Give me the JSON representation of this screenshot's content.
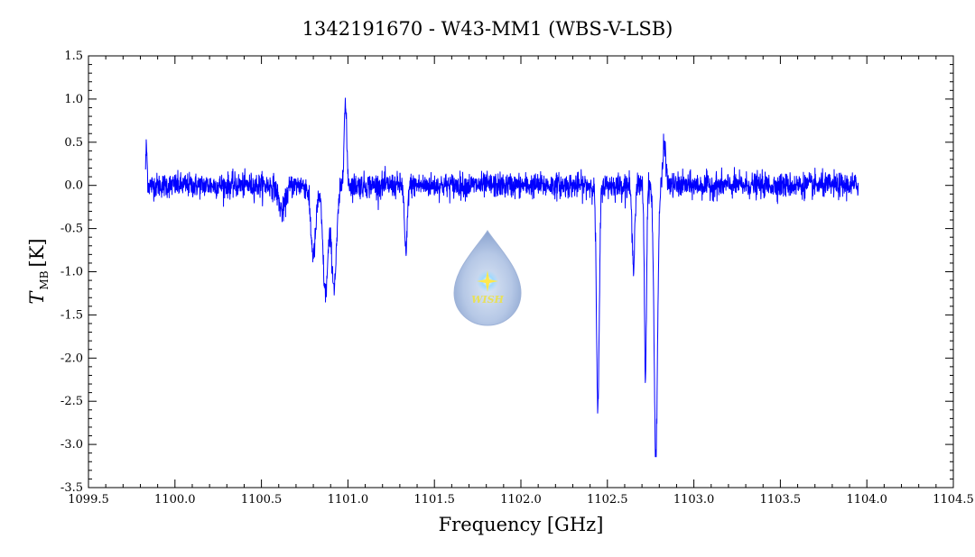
{
  "chart_data": {
    "type": "line",
    "title": "1342191670 - W43-MM1 (WBS-V-LSB)",
    "xlabel": "Frequency [GHz]",
    "ylabel": {
      "main": "T",
      "sub": "MB",
      "unit": "[K]"
    },
    "xlim": [
      1099.5,
      1104.5
    ],
    "ylim": [
      -3.5,
      1.5
    ],
    "x_ticks": [
      "1099.5",
      "1100.0",
      "1100.5",
      "1101.0",
      "1101.5",
      "1102.0",
      "1102.5",
      "1103.0",
      "1103.5",
      "1104.0",
      "1104.5"
    ],
    "y_ticks": [
      "1.5",
      "1.0",
      "0.5",
      "0.0",
      "-0.5",
      "-1.0",
      "-1.5",
      "-2.0",
      "-2.5",
      "-3.0",
      "-3.5"
    ],
    "grid": false,
    "series": [
      {
        "color": "#0000ff",
        "x_range": [
          1099.83,
          1103.95
        ],
        "noise_rms": 0.07,
        "features": [
          {
            "x": 1099.835,
            "y": 0.45,
            "width": 0.004
          },
          {
            "x": 1100.62,
            "y": -0.3,
            "width": 0.02
          },
          {
            "x": 1100.8,
            "y": -0.8,
            "width": 0.015
          },
          {
            "x": 1100.87,
            "y": -1.25,
            "width": 0.015
          },
          {
            "x": 1100.92,
            "y": -1.15,
            "width": 0.015
          },
          {
            "x": 1100.985,
            "y": 0.92,
            "width": 0.008
          },
          {
            "x": 1101.335,
            "y": -0.8,
            "width": 0.008
          },
          {
            "x": 1102.445,
            "y": -2.62,
            "width": 0.008
          },
          {
            "x": 1102.65,
            "y": -0.9,
            "width": 0.008
          },
          {
            "x": 1102.72,
            "y": -2.22,
            "width": 0.006
          },
          {
            "x": 1102.78,
            "y": -3.12,
            "width": 0.01
          },
          {
            "x": 1102.83,
            "y": 0.5,
            "width": 0.008
          }
        ]
      }
    ]
  },
  "logo": {
    "text": "WISH"
  }
}
